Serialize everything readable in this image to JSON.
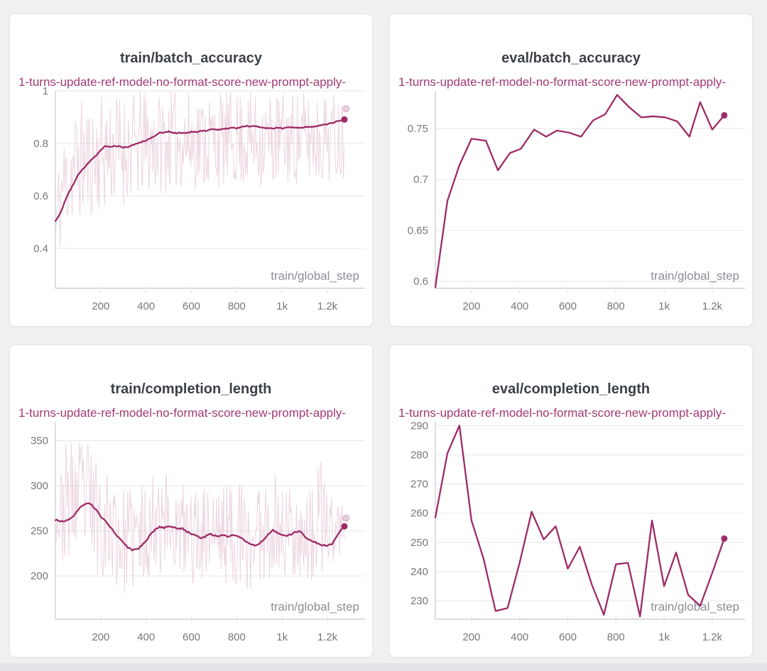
{
  "theme": {
    "page_bg": "#eef0f2",
    "card_bg": "#ffffff",
    "card_border": "#e3e4e7",
    "title_color": "#3c4148",
    "run_color": "#a23a74",
    "line_color": "#9e2b66",
    "raw_color": "#dcb3c9",
    "raw_dot_fill": "#e8cddd",
    "raw_dot_stroke": "#d9aec8",
    "grid_color": "#ebebee",
    "axis_color": "#d0d1d5",
    "tick_text_color": "#76777c",
    "axis_label_color": "#8b8e96"
  },
  "run_name": "1-turns-update-ref-model-no-format-score-new-prompt-apply-",
  "chart_data": [
    {
      "type": "line",
      "title": "train/batch_accuracy",
      "run": "1-turns-update-ref-model-no-format-score-new-prompt-apply-",
      "xlabel": "train/global_step",
      "xlim": [
        0,
        1366
      ],
      "ylim": [
        0.248,
        1.0
      ],
      "x_ticks": [
        {
          "v": 200,
          "label": "200"
        },
        {
          "v": 400,
          "label": "400"
        },
        {
          "v": 600,
          "label": "600"
        },
        {
          "v": 800,
          "label": "800"
        },
        {
          "v": 1000,
          "label": "1k"
        },
        {
          "v": 1200,
          "label": "1.2k"
        }
      ],
      "y_ticks": [
        {
          "v": 1,
          "label": "1"
        },
        {
          "v": 0.8,
          "label": "0.8"
        },
        {
          "v": 0.6,
          "label": "0.6"
        },
        {
          "v": 0.4,
          "label": "0.4"
        }
      ],
      "grid": true,
      "legend_position": "top-left",
      "seed": 11,
      "line_jitter": 0.004,
      "series": [
        [
          0,
          0.505
        ],
        [
          20,
          0.53
        ],
        [
          40,
          0.575
        ],
        [
          60,
          0.615
        ],
        [
          80,
          0.645
        ],
        [
          100,
          0.68
        ],
        [
          120,
          0.7
        ],
        [
          140,
          0.72
        ],
        [
          160,
          0.74
        ],
        [
          180,
          0.755
        ],
        [
          200,
          0.775
        ],
        [
          220,
          0.79
        ],
        [
          240,
          0.787
        ],
        [
          260,
          0.79
        ],
        [
          280,
          0.79
        ],
        [
          300,
          0.785
        ],
        [
          320,
          0.787
        ],
        [
          340,
          0.793
        ],
        [
          360,
          0.8
        ],
        [
          380,
          0.806
        ],
        [
          400,
          0.812
        ],
        [
          420,
          0.82
        ],
        [
          440,
          0.83
        ],
        [
          460,
          0.84
        ],
        [
          480,
          0.841
        ],
        [
          500,
          0.845
        ],
        [
          520,
          0.84
        ],
        [
          540,
          0.84
        ],
        [
          560,
          0.84
        ],
        [
          580,
          0.84
        ],
        [
          600,
          0.844
        ],
        [
          620,
          0.842
        ],
        [
          640,
          0.848
        ],
        [
          660,
          0.848
        ],
        [
          680,
          0.852
        ],
        [
          700,
          0.855
        ],
        [
          720,
          0.852
        ],
        [
          740,
          0.856
        ],
        [
          760,
          0.857
        ],
        [
          780,
          0.86
        ],
        [
          800,
          0.858
        ],
        [
          820,
          0.863
        ],
        [
          840,
          0.866
        ],
        [
          860,
          0.865
        ],
        [
          880,
          0.865
        ],
        [
          900,
          0.864
        ],
        [
          920,
          0.86
        ],
        [
          940,
          0.857
        ],
        [
          960,
          0.858
        ],
        [
          980,
          0.86
        ],
        [
          1000,
          0.858
        ],
        [
          1020,
          0.861
        ],
        [
          1040,
          0.863
        ],
        [
          1060,
          0.859
        ],
        [
          1080,
          0.859
        ],
        [
          1100,
          0.861
        ],
        [
          1120,
          0.863
        ],
        [
          1140,
          0.865
        ],
        [
          1160,
          0.867
        ],
        [
          1180,
          0.87
        ],
        [
          1200,
          0.873
        ],
        [
          1220,
          0.878
        ],
        [
          1240,
          0.884
        ],
        [
          1260,
          0.888
        ],
        [
          1275,
          0.891
        ]
      ],
      "raw_envelope": [
        [
          0,
          0.22,
          0.7
        ],
        [
          30,
          0.44,
          0.82
        ],
        [
          60,
          0.46,
          0.92
        ],
        [
          100,
          0.49,
          0.97
        ],
        [
          160,
          0.52,
          0.96
        ],
        [
          220,
          0.54,
          1.0
        ],
        [
          300,
          0.56,
          1.0
        ],
        [
          400,
          0.59,
          1.0
        ],
        [
          500,
          0.62,
          1.0
        ],
        [
          650,
          0.62,
          1.0
        ],
        [
          800,
          0.63,
          1.0
        ],
        [
          950,
          0.63,
          1.0
        ],
        [
          1100,
          0.64,
          1.0
        ],
        [
          1275,
          0.66,
          1.0
        ]
      ],
      "end_dot": [
        1275,
        0.891
      ],
      "raw_end_dot": [
        1282,
        0.932
      ]
    },
    {
      "type": "line",
      "title": "eval/batch_accuracy",
      "run": "1-turns-update-ref-model-no-format-score-new-prompt-apply-",
      "xlabel": "train/global_step",
      "xlim": [
        50,
        1336
      ],
      "ylim": [
        0.593,
        0.787
      ],
      "x_ticks": [
        {
          "v": 200,
          "label": "200"
        },
        {
          "v": 400,
          "label": "400"
        },
        {
          "v": 600,
          "label": "600"
        },
        {
          "v": 800,
          "label": "800"
        },
        {
          "v": 1000,
          "label": "1k"
        },
        {
          "v": 1200,
          "label": "1.2k"
        }
      ],
      "y_ticks": [
        {
          "v": 0.75,
          "label": "0.75"
        },
        {
          "v": 0.7,
          "label": "0.7"
        },
        {
          "v": 0.65,
          "label": "0.65"
        },
        {
          "v": 0.6,
          "label": "0.6"
        }
      ],
      "grid": true,
      "legend_position": "top-left",
      "series": [
        [
          50,
          0.594
        ],
        [
          100,
          0.679
        ],
        [
          150,
          0.714
        ],
        [
          200,
          0.74
        ],
        [
          260,
          0.738
        ],
        [
          310,
          0.709
        ],
        [
          360,
          0.726
        ],
        [
          405,
          0.73
        ],
        [
          460,
          0.749
        ],
        [
          510,
          0.742
        ],
        [
          555,
          0.748
        ],
        [
          605,
          0.746
        ],
        [
          655,
          0.742
        ],
        [
          705,
          0.758
        ],
        [
          755,
          0.764
        ],
        [
          805,
          0.783
        ],
        [
          855,
          0.771
        ],
        [
          905,
          0.761
        ],
        [
          955,
          0.762
        ],
        [
          1005,
          0.761
        ],
        [
          1055,
          0.757
        ],
        [
          1105,
          0.742
        ],
        [
          1150,
          0.776
        ],
        [
          1200,
          0.749
        ],
        [
          1250,
          0.763
        ]
      ],
      "end_dot": [
        1250,
        0.763
      ]
    },
    {
      "type": "line",
      "title": "train/completion_length",
      "run": "1-turns-update-ref-model-no-format-score-new-prompt-apply-",
      "xlabel": "train/global_step",
      "xlim": [
        0,
        1366
      ],
      "ylim": [
        152,
        371
      ],
      "x_ticks": [
        {
          "v": 200,
          "label": "200"
        },
        {
          "v": 400,
          "label": "400"
        },
        {
          "v": 600,
          "label": "600"
        },
        {
          "v": 800,
          "label": "800"
        },
        {
          "v": 1000,
          "label": "1k"
        },
        {
          "v": 1200,
          "label": "1.2k"
        }
      ],
      "y_ticks": [
        {
          "v": 350,
          "label": "350"
        },
        {
          "v": 300,
          "label": "300"
        },
        {
          "v": 250,
          "label": "250"
        },
        {
          "v": 200,
          "label": "200"
        }
      ],
      "grid": true,
      "legend_position": "top-left",
      "seed": 23,
      "line_jitter": 1.6,
      "series": [
        [
          0,
          262
        ],
        [
          20,
          261
        ],
        [
          40,
          261
        ],
        [
          60,
          262
        ],
        [
          80,
          267
        ],
        [
          100,
          273
        ],
        [
          120,
          278
        ],
        [
          140,
          280.5
        ],
        [
          160,
          279
        ],
        [
          180,
          273
        ],
        [
          200,
          266
        ],
        [
          220,
          261
        ],
        [
          240,
          255
        ],
        [
          260,
          248
        ],
        [
          280,
          242
        ],
        [
          300,
          237
        ],
        [
          320,
          231.5
        ],
        [
          340,
          228.5
        ],
        [
          360,
          229.5
        ],
        [
          380,
          233
        ],
        [
          400,
          239
        ],
        [
          420,
          246
        ],
        [
          440,
          251
        ],
        [
          460,
          254.5
        ],
        [
          480,
          253
        ],
        [
          500,
          255.5
        ],
        [
          520,
          254
        ],
        [
          540,
          252.5
        ],
        [
          560,
          253
        ],
        [
          580,
          249
        ],
        [
          600,
          247
        ],
        [
          620,
          245
        ],
        [
          640,
          242
        ],
        [
          660,
          243.5
        ],
        [
          680,
          246.5
        ],
        [
          700,
          245
        ],
        [
          720,
          244
        ],
        [
          740,
          245.5
        ],
        [
          760,
          244
        ],
        [
          780,
          245
        ],
        [
          800,
          244.5
        ],
        [
          820,
          242
        ],
        [
          840,
          238
        ],
        [
          860,
          235
        ],
        [
          880,
          234
        ],
        [
          900,
          236
        ],
        [
          920,
          240
        ],
        [
          940,
          246
        ],
        [
          960,
          250.5
        ],
        [
          980,
          248
        ],
        [
          1000,
          245
        ],
        [
          1020,
          244.5
        ],
        [
          1040,
          246
        ],
        [
          1060,
          249
        ],
        [
          1080,
          249
        ],
        [
          1100,
          244
        ],
        [
          1120,
          240
        ],
        [
          1140,
          238
        ],
        [
          1160,
          236
        ],
        [
          1180,
          234
        ],
        [
          1200,
          233.5
        ],
        [
          1220,
          235
        ],
        [
          1240,
          243
        ],
        [
          1260,
          251
        ],
        [
          1275,
          255
        ]
      ],
      "raw_envelope": [
        [
          0,
          237,
          268
        ],
        [
          40,
          210,
          348
        ],
        [
          80,
          220,
          352
        ],
        [
          130,
          212,
          358
        ],
        [
          180,
          202,
          340
        ],
        [
          240,
          196,
          315
        ],
        [
          300,
          178,
          296
        ],
        [
          360,
          182,
          302
        ],
        [
          420,
          198,
          305
        ],
        [
          460,
          200,
          369
        ],
        [
          500,
          205,
          308
        ],
        [
          560,
          192,
          302
        ],
        [
          620,
          190,
          298
        ],
        [
          680,
          200,
          308
        ],
        [
          740,
          192,
          302
        ],
        [
          800,
          188,
          312
        ],
        [
          830,
          148,
          305
        ],
        [
          880,
          188,
          298
        ],
        [
          940,
          198,
          328
        ],
        [
          1000,
          192,
          306
        ],
        [
          1060,
          198,
          308
        ],
        [
          1120,
          186,
          292
        ],
        [
          1180,
          188,
          337
        ],
        [
          1220,
          195,
          302
        ],
        [
          1250,
          205,
          298
        ],
        [
          1275,
          225,
          280
        ]
      ],
      "end_dot": [
        1275,
        255
      ],
      "raw_end_dot": [
        1282,
        264
      ]
    },
    {
      "type": "line",
      "title": "eval/completion_length",
      "run": "1-turns-update-ref-model-no-format-score-new-prompt-apply-",
      "xlabel": "train/global_step",
      "xlim": [
        50,
        1336
      ],
      "ylim": [
        223.7,
        291.3
      ],
      "x_ticks": [
        {
          "v": 200,
          "label": "200"
        },
        {
          "v": 400,
          "label": "400"
        },
        {
          "v": 600,
          "label": "600"
        },
        {
          "v": 800,
          "label": "800"
        },
        {
          "v": 1000,
          "label": "1k"
        },
        {
          "v": 1200,
          "label": "1.2k"
        }
      ],
      "y_ticks": [
        {
          "v": 290,
          "label": "290"
        },
        {
          "v": 280,
          "label": "280"
        },
        {
          "v": 270,
          "label": "270"
        },
        {
          "v": 260,
          "label": "260"
        },
        {
          "v": 250,
          "label": "250"
        },
        {
          "v": 240,
          "label": "240"
        },
        {
          "v": 230,
          "label": "230"
        }
      ],
      "grid": true,
      "legend_position": "top-left",
      "series": [
        [
          50,
          258.5
        ],
        [
          100,
          280.5
        ],
        [
          150,
          290
        ],
        [
          200,
          257.5
        ],
        [
          250,
          244.5
        ],
        [
          300,
          226.5
        ],
        [
          350,
          227.5
        ],
        [
          400,
          243
        ],
        [
          450,
          260.5
        ],
        [
          500,
          251
        ],
        [
          550,
          255.5
        ],
        [
          600,
          241
        ],
        [
          650,
          248.5
        ],
        [
          700,
          235.5
        ],
        [
          750,
          225.2
        ],
        [
          800,
          242.5
        ],
        [
          850,
          243
        ],
        [
          900,
          224.6
        ],
        [
          950,
          257.5
        ],
        [
          1000,
          235
        ],
        [
          1050,
          246.5
        ],
        [
          1100,
          232
        ],
        [
          1150,
          228.3
        ],
        [
          1200,
          239.5
        ],
        [
          1250,
          251.3
        ]
      ],
      "end_dot": [
        1250,
        251.3
      ]
    }
  ]
}
